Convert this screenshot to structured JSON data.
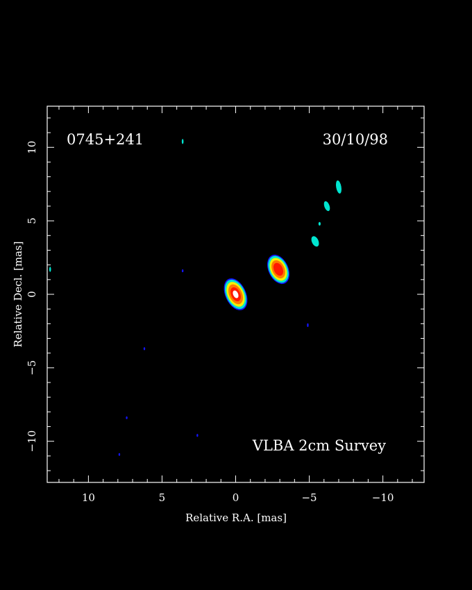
{
  "chart_data": {
    "type": "heatmap",
    "title": "",
    "xlabel": "Relative R.A. [mas]",
    "ylabel": "Relative Decl. [mas]",
    "xlim": [
      12.8,
      -12.8
    ],
    "ylim": [
      -12.8,
      12.8
    ],
    "x_ticks": [
      10,
      5,
      0,
      -5,
      -10
    ],
    "x_tick_labels": [
      "10",
      "5",
      "0",
      "−5",
      "−10"
    ],
    "y_ticks": [
      10,
      5,
      0,
      -5,
      -10
    ],
    "y_tick_labels": [
      "10",
      "5",
      "0",
      "−5",
      "−10"
    ],
    "grid": false,
    "annotations": {
      "source_name": "0745+241",
      "date": "30/10/98",
      "survey": "VLBA 2cm Survey"
    },
    "colors": {
      "background": "#000000",
      "frame": "#ffffff",
      "level_1": "#1414ff",
      "level_2": "#00e5d0",
      "level_3": "#f5f000",
      "level_4": "#ff7a00",
      "level_5": "#ff1a00",
      "level_6": "#ffffff"
    },
    "features": [
      {
        "name": "core",
        "x": 0.0,
        "y": 0.0,
        "major_mas": 2.3,
        "minor_mas": 1.4,
        "pa_deg": -25,
        "peak_level": 6
      },
      {
        "name": "jet-knot-1",
        "x": -2.9,
        "y": 1.7,
        "major_mas": 2.1,
        "minor_mas": 1.35,
        "pa_deg": -25,
        "peak_level": 5
      },
      {
        "name": "jet-knot-2",
        "x": -5.4,
        "y": 3.6,
        "major_mas": 0.75,
        "minor_mas": 0.45,
        "pa_deg": -25,
        "peak_level": 2
      },
      {
        "name": "jet-knot-3",
        "x": -6.2,
        "y": 6.0,
        "major_mas": 0.7,
        "minor_mas": 0.35,
        "pa_deg": -20,
        "peak_level": 2
      },
      {
        "name": "jet-knot-4",
        "x": -7.0,
        "y": 7.3,
        "major_mas": 0.9,
        "minor_mas": 0.35,
        "pa_deg": -10,
        "peak_level": 2
      },
      {
        "name": "jet-knot-5",
        "x": -5.7,
        "y": 4.8,
        "major_mas": 0.25,
        "minor_mas": 0.15,
        "pa_deg": 0,
        "peak_level": 2
      },
      {
        "name": "speck-1",
        "x": 3.6,
        "y": 10.4,
        "major_mas": 0.35,
        "minor_mas": 0.12,
        "pa_deg": 0,
        "peak_level": 2
      },
      {
        "name": "speck-2",
        "x": 12.6,
        "y": 1.7,
        "major_mas": 0.35,
        "minor_mas": 0.12,
        "pa_deg": 0,
        "peak_level": 2
      },
      {
        "name": "speck-3",
        "x": 3.6,
        "y": 1.6,
        "major_mas": 0.2,
        "minor_mas": 0.08,
        "pa_deg": 0,
        "peak_level": 1
      },
      {
        "name": "speck-4",
        "x": 6.2,
        "y": -3.7,
        "major_mas": 0.2,
        "minor_mas": 0.08,
        "pa_deg": 0,
        "peak_level": 1
      },
      {
        "name": "speck-5",
        "x": -4.9,
        "y": -2.1,
        "major_mas": 0.25,
        "minor_mas": 0.08,
        "pa_deg": 0,
        "peak_level": 1
      },
      {
        "name": "speck-6",
        "x": 7.4,
        "y": -8.4,
        "major_mas": 0.15,
        "minor_mas": 0.1,
        "pa_deg": 0,
        "peak_level": 1
      },
      {
        "name": "speck-7",
        "x": 2.6,
        "y": -9.6,
        "major_mas": 0.2,
        "minor_mas": 0.08,
        "pa_deg": 0,
        "peak_level": 1
      },
      {
        "name": "speck-8",
        "x": 7.9,
        "y": -10.9,
        "major_mas": 0.1,
        "minor_mas": 0.06,
        "pa_deg": 0,
        "peak_level": 1
      }
    ]
  }
}
